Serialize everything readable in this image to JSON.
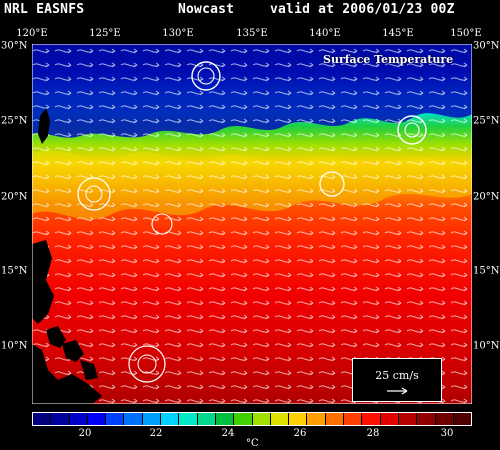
{
  "header": {
    "model": "NRL EASNFS",
    "product": "Nowcast",
    "valid": "valid at 2006/01/23 00Z"
  },
  "plot": {
    "title": "Surface Temperature",
    "lon_labels": [
      "120°E",
      "125°E",
      "130°E",
      "135°E",
      "140°E",
      "145°E",
      "150°E"
    ],
    "lat_labels_left": [
      "30°N",
      "25°N",
      "20°N",
      "15°N",
      "10°N"
    ],
    "lat_labels_right": [
      "30°N",
      "25°N",
      "20°N",
      "15°N",
      "10°N"
    ]
  },
  "scale_vector": {
    "label": "25 cm/s"
  },
  "colorbar": {
    "ticks": [
      "20",
      "22",
      "24",
      "26",
      "28",
      "30"
    ],
    "unit": "°C",
    "colors": [
      "#000080",
      "#00009c",
      "#0000c8",
      "#0000ff",
      "#0040ff",
      "#0070ff",
      "#00a0ff",
      "#00d0ff",
      "#00e8c8",
      "#00d890",
      "#00c040",
      "#40d000",
      "#a0e000",
      "#e0e000",
      "#ffd000",
      "#ffa000",
      "#ff7000",
      "#ff4000",
      "#ff1000",
      "#e00000",
      "#b80000",
      "#900000",
      "#700000",
      "#500000"
    ]
  }
}
